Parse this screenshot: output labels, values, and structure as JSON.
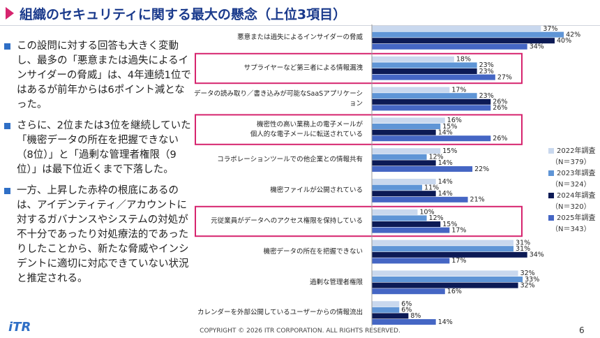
{
  "slide": {
    "title": "組織のセキュリティに関する最大の懸念（上位3項目）",
    "bullets": [
      "この設問に対する回答も大きく変動し、最多の「悪意または過失によるインサイダーの脅威」は、4年連続1位ではあるが前年からは6ポイント減となった。",
      "さらに、2位または3位を継続していた「機密データの所在を把握できない（8位）」と「過剰な管理者権限（9位）」は最下位近くまで下落した。",
      "一方、上昇した赤枠の根底にあるのは、アイデンティティ／アカウントに対するガバナンスやシステムの対処が不十分であったり対処療法的であったりしたことから、新たな脅威やインシデントに適切に対応できていない状況と推定される。"
    ],
    "logo": "iTR",
    "copyright": "COPYRIGHT © 2026 ITR CORPORATION. ALL RIGHTS RESERVED.",
    "page_number": "6"
  },
  "chart_data": {
    "type": "bar",
    "orientation": "horizontal",
    "categories": [
      "悪意または過失によるインサイダーの脅威",
      "サプライヤーなど第三者による情報漏洩",
      "データの読み取り／書き込みが可能なSaaSアプリケーション",
      "機密性の高い業務上の電子メールが\n個人的な電子メールに転送されている",
      "コラボレーションツールでの他企業との情報共有",
      "機密ファイルが公開されている",
      "元従業員がデータへのアクセス権限を保持している",
      "機密データの所在を把握できない",
      "過剰な管理者権限",
      "カレンダーを外部公開しているユーザーからの情報流出"
    ],
    "series": [
      {
        "name": "2022年調査",
        "sample": "（N＝379）",
        "color": "#c9d8ee",
        "values": [
          37,
          18,
          17,
          16,
          15,
          14,
          10,
          31,
          32,
          6
        ],
        "value_labels": [
          "37%",
          "18%",
          "17%",
          "16%",
          "15%",
          "14%",
          "10%",
          "31%",
          "32%",
          "6%"
        ]
      },
      {
        "name": "2023年調査",
        "sample": "（N＝324）",
        "color": "#5f95d6",
        "values": [
          42,
          23,
          23,
          15,
          12,
          11,
          12,
          31,
          33,
          6
        ],
        "value_labels": [
          "42%",
          "23%",
          "23%",
          "15%",
          "12%",
          "11%",
          "12%",
          "31%",
          "33%",
          "6%"
        ]
      },
      {
        "name": "2024年調査",
        "sample": "（N＝320）",
        "color": "#0c1a55",
        "values": [
          40,
          23,
          26,
          14,
          14,
          14,
          15,
          34,
          32,
          8
        ],
        "value_labels": [
          "40%",
          "23%",
          "26%",
          "14%",
          "14%",
          "14%",
          "15%",
          "34%",
          "32%",
          "8%"
        ]
      },
      {
        "name": "2025年調査",
        "sample": "（N＝343）",
        "color": "#4566c4",
        "values": [
          34,
          27,
          26,
          26,
          22,
          21,
          17,
          17,
          16,
          14
        ],
        "value_labels": [
          "34%",
          "27%",
          "26%",
          "26%",
          "22%",
          "21%",
          "17%",
          "17%",
          "16%",
          "14%"
        ]
      }
    ],
    "highlight": [
      1,
      3,
      6
    ],
    "highlight_color": "#d6246e",
    "legend": "right"
  }
}
